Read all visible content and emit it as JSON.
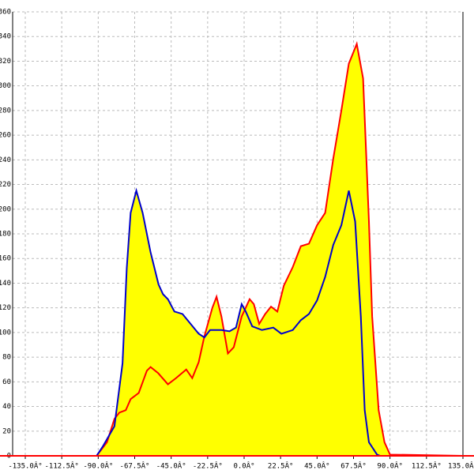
{
  "chart_data": {
    "type": "area",
    "xlim": [
      -142.8,
      135
    ],
    "ylim": [
      0,
      360
    ],
    "xticks": [
      {
        "value": -135,
        "label": "-135.0Â°"
      },
      {
        "value": -112.5,
        "label": "-112.5Â°"
      },
      {
        "value": -90,
        "label": "-90.0Â°"
      },
      {
        "value": -67.5,
        "label": "-67.5Â°"
      },
      {
        "value": -45,
        "label": "-45.0Â°"
      },
      {
        "value": -22.5,
        "label": "-22.5Â°"
      },
      {
        "value": 0,
        "label": "0.0Â°"
      },
      {
        "value": 22.5,
        "label": "22.5Â°"
      },
      {
        "value": 45,
        "label": "45.0Â°"
      },
      {
        "value": 67.5,
        "label": "67.5Â°"
      },
      {
        "value": 90,
        "label": "90.0Â°"
      },
      {
        "value": 112.5,
        "label": "112.5Â°"
      },
      {
        "value": 135,
        "label": "135.0Â°"
      }
    ],
    "yticks": [
      0,
      20,
      40,
      60,
      80,
      100,
      120,
      140,
      160,
      180,
      200,
      220,
      240,
      260,
      280,
      300,
      320,
      340,
      360
    ],
    "grid": true,
    "fill": "#ffff00",
    "series": [
      {
        "color": "#ff0000",
        "x": [
          -135,
          -91,
          -84.6,
          -80,
          -77,
          -73,
          -70,
          -65,
          -60,
          -57.7,
          -53,
          -47,
          -42,
          -35.7,
          -32,
          -28,
          -24.5,
          -19.6,
          -17,
          -14,
          -10,
          -6.4,
          -1.5,
          3.4,
          6,
          9.3,
          13,
          16.6,
          20.5,
          24.5,
          30,
          35,
          40,
          45,
          50,
          55,
          60,
          64.6,
          69.5,
          73.4,
          77,
          79,
          83,
          86.6,
          90,
          135
        ],
        "values": [
          0,
          0,
          11,
          30,
          35,
          37,
          46,
          51,
          69,
          72,
          67,
          58,
          63,
          70,
          63,
          76,
          97,
          120,
          129,
          113,
          83,
          88,
          113,
          127,
          123,
          107,
          115,
          121,
          117,
          138,
          153,
          170,
          172,
          187,
          197,
          241,
          280,
          318,
          334,
          306,
          190,
          113,
          37,
          11,
          1,
          0
        ]
      },
      {
        "color": "#0000cc",
        "x": [
          -135,
          -91,
          -87,
          -80,
          -75,
          -72.4,
          -70,
          -66.5,
          -62.6,
          -57.7,
          -52.8,
          -50,
          -47,
          -43,
          -38,
          -33,
          -28,
          -24.5,
          -21,
          -14,
          -9,
          -5,
          -1.5,
          1,
          5,
          11,
          18,
          23,
          30,
          35,
          40,
          45,
          50,
          55,
          60,
          64.6,
          68.5,
          72,
          74.4,
          77,
          82,
          84,
          135
        ],
        "values": [
          0,
          0,
          8,
          24,
          75,
          152,
          197,
          215,
          197,
          165,
          139,
          131,
          127,
          117,
          115,
          107,
          99,
          96,
          102,
          102,
          101,
          104,
          123,
          117,
          105,
          102,
          104,
          99,
          102,
          110,
          115,
          126,
          145,
          171,
          187,
          215,
          190,
          113,
          37,
          11,
          1,
          0,
          0
        ]
      }
    ]
  }
}
